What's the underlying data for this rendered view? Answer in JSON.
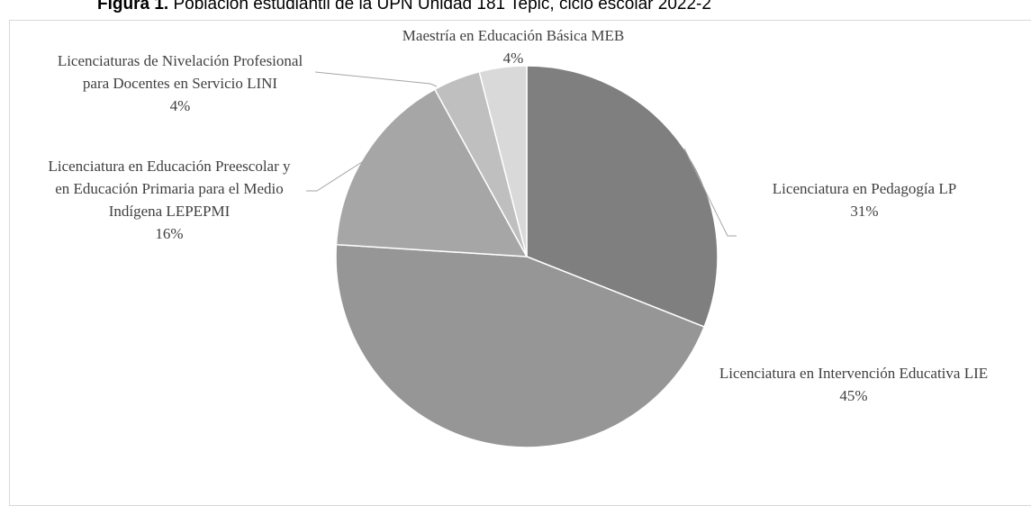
{
  "chart_data": {
    "type": "pie",
    "title_prefix": "Figura 1.",
    "title": "Población estudiantil de la UPN Unidad 181 Tepic, ciclo escolar 2022-2",
    "categories": [
      "Licenciatura en Pedagogía LP",
      "Licenciatura en Intervención Educativa LIE",
      "Licenciatura en Educación Preescolar y en Educación Primaria para el Medio Indígena LEPEPMI",
      "Licenciaturas de Nivelación Profesional para Docentes en Servicio LINI",
      "Maestría en Educación Básica MEB"
    ],
    "values": [
      31,
      45,
      16,
      4,
      4
    ],
    "value_labels": [
      "31%",
      "45%",
      "16%",
      "4%",
      "4%"
    ],
    "colors": [
      "#7f7f7f",
      "#969696",
      "#a6a6a6",
      "#bfbfbf",
      "#d9d9d9"
    ]
  }
}
